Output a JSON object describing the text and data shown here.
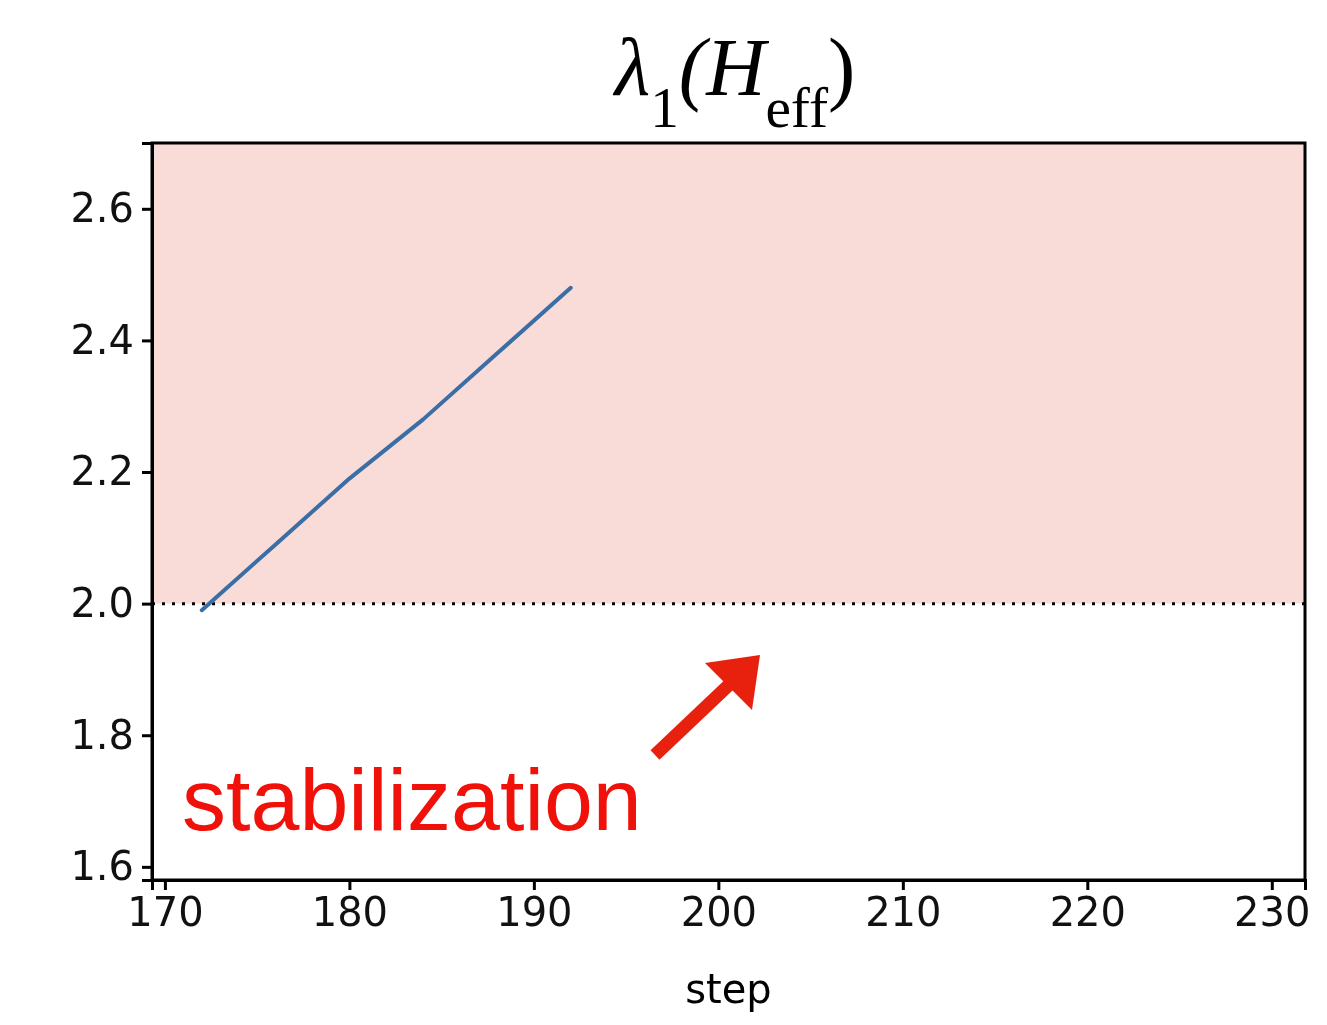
{
  "chart_data": {
    "type": "line",
    "title": "λ$_{1}$(H$_{eff}$)",
    "xlabel": "step",
    "x": [
      172,
      176,
      180,
      184,
      188,
      192
    ],
    "series": [
      {
        "color": "#3b6ea5",
        "values": [
          1.99,
          2.09,
          2.19,
          2.28,
          2.38,
          2.48
        ]
      }
    ],
    "xlim": [
      169.3,
      231.8
    ],
    "xticks": [
      170,
      180,
      190,
      200,
      210,
      220,
      230
    ],
    "ylim": [
      1.58,
      2.7
    ],
    "yticks": [
      1.6,
      1.8,
      {
        "value": 2.0,
        "label": "2.0"
      },
      2.2,
      2.4,
      2.6
    ],
    "grid": false,
    "line_style": "solid",
    "marker": "none",
    "ref_lines": [
      {
        "axis": "y",
        "value": 2.0,
        "color": "#000000",
        "line_style": "dotted"
      }
    ],
    "bands": [
      {
        "axis": "y",
        "from": 2.0,
        "to": 2.7,
        "color": "#f9dcd8"
      }
    ],
    "annotations": [
      "stabilization"
    ]
  }
}
